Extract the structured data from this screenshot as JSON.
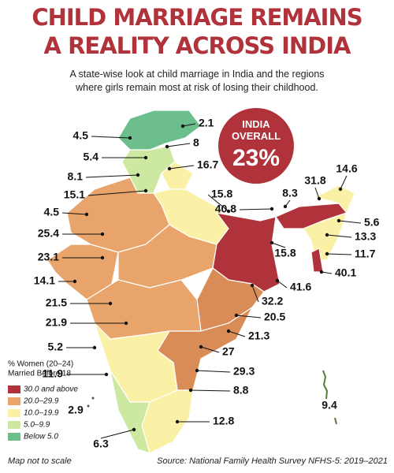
{
  "header": {
    "title": [
      "CHILD MARRIAGE REMAINS",
      "A REALITY ACROSS INDIA"
    ],
    "subtitle": [
      "A state-wise look at child marriage in India and the regions",
      "where girls remain most at risk of losing their childhood."
    ]
  },
  "callout": {
    "label": [
      "INDIA",
      "OVERALL"
    ],
    "value": "23%"
  },
  "labels": [
    "2.1",
    "4.5",
    "8",
    "5.4",
    "16.7",
    "8.1",
    "15.1",
    "15.8",
    "8.3",
    "31.8",
    "14.6",
    "40.8",
    "4.5",
    "25.4",
    "5.6",
    "13.3",
    "23.1",
    "15.8",
    "11.7",
    "14.1",
    "40.1",
    "41.6",
    "21.5",
    "32.2",
    "20.5",
    "21.9",
    "21.3",
    "27",
    "5.2",
    "29.3",
    "11.9",
    "8.8",
    "2.9",
    "9.4",
    "12.8",
    "6.3"
  ],
  "legend": {
    "title": [
      "% Women (20–24)",
      "Married Before 18"
    ],
    "items": [
      {
        "label": "30.0 and above",
        "color": "#b0323a"
      },
      {
        "label": "20.0–29.9",
        "color": "#e8a46a"
      },
      {
        "label": "10.0–19.9",
        "color": "#faf0a6"
      },
      {
        "label": "5.0–9.9",
        "color": "#cde8a0"
      },
      {
        "label": "Below 5.0",
        "color": "#6cbf8c"
      }
    ]
  },
  "footer": {
    "note": "Map not to scale",
    "source": "Source: National Family Health Survey NFHS-5: 2019–2021"
  }
}
